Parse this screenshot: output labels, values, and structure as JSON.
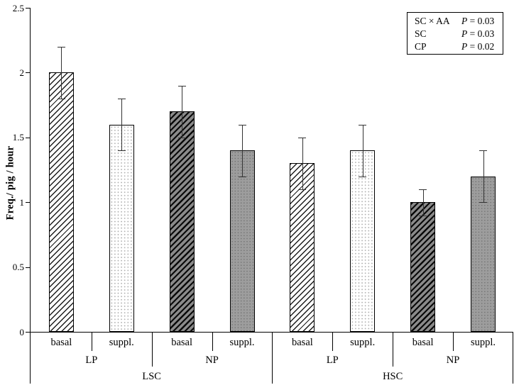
{
  "chart_data": {
    "type": "bar",
    "title": "",
    "ylabel": "Freq./ pig / hour",
    "ylim": [
      0,
      2.5
    ],
    "yticks": [
      "0",
      "0.5",
      "1",
      "1.5",
      "2",
      "2.5"
    ],
    "ytick_values": [
      0,
      0.5,
      1,
      1.5,
      2,
      2.5
    ],
    "grid": false,
    "legend_position": "top-right",
    "bars": [
      {
        "group3": "LSC",
        "group2": "LP",
        "label": "basal",
        "value": 2.0,
        "error": 0.2,
        "pattern": "hatch-light"
      },
      {
        "group3": "LSC",
        "group2": "LP",
        "label": "suppl.",
        "value": 1.6,
        "error": 0.2,
        "pattern": "dot-light"
      },
      {
        "group3": "LSC",
        "group2": "NP",
        "label": "basal",
        "value": 1.7,
        "error": 0.2,
        "pattern": "hatch-dark"
      },
      {
        "group3": "LSC",
        "group2": "NP",
        "label": "suppl.",
        "value": 1.4,
        "error": 0.2,
        "pattern": "gray-dot"
      },
      {
        "group3": "HSC",
        "group2": "LP",
        "label": "basal",
        "value": 1.3,
        "error": 0.2,
        "pattern": "hatch-light"
      },
      {
        "group3": "HSC",
        "group2": "LP",
        "label": "suppl.",
        "value": 1.4,
        "error": 0.2,
        "pattern": "dot-light"
      },
      {
        "group3": "HSC",
        "group2": "NP",
        "label": "basal",
        "value": 1.0,
        "error": 0.1,
        "pattern": "hatch-dark"
      },
      {
        "group3": "HSC",
        "group2": "NP",
        "label": "suppl.",
        "value": 1.2,
        "error": 0.2,
        "pattern": "gray-dot"
      }
    ],
    "groups_level2": [
      "LP",
      "NP",
      "LP",
      "NP"
    ],
    "groups_level3": [
      "LSC",
      "HSC"
    ],
    "legend": {
      "rows": [
        {
          "term": "SC × AA",
          "p_label": "P",
          "p_value": "= 0.03"
        },
        {
          "term": "SC",
          "p_label": "P",
          "p_value": "= 0.03"
        },
        {
          "term": "CP",
          "p_label": "P",
          "p_value": "= 0.02"
        }
      ]
    }
  }
}
